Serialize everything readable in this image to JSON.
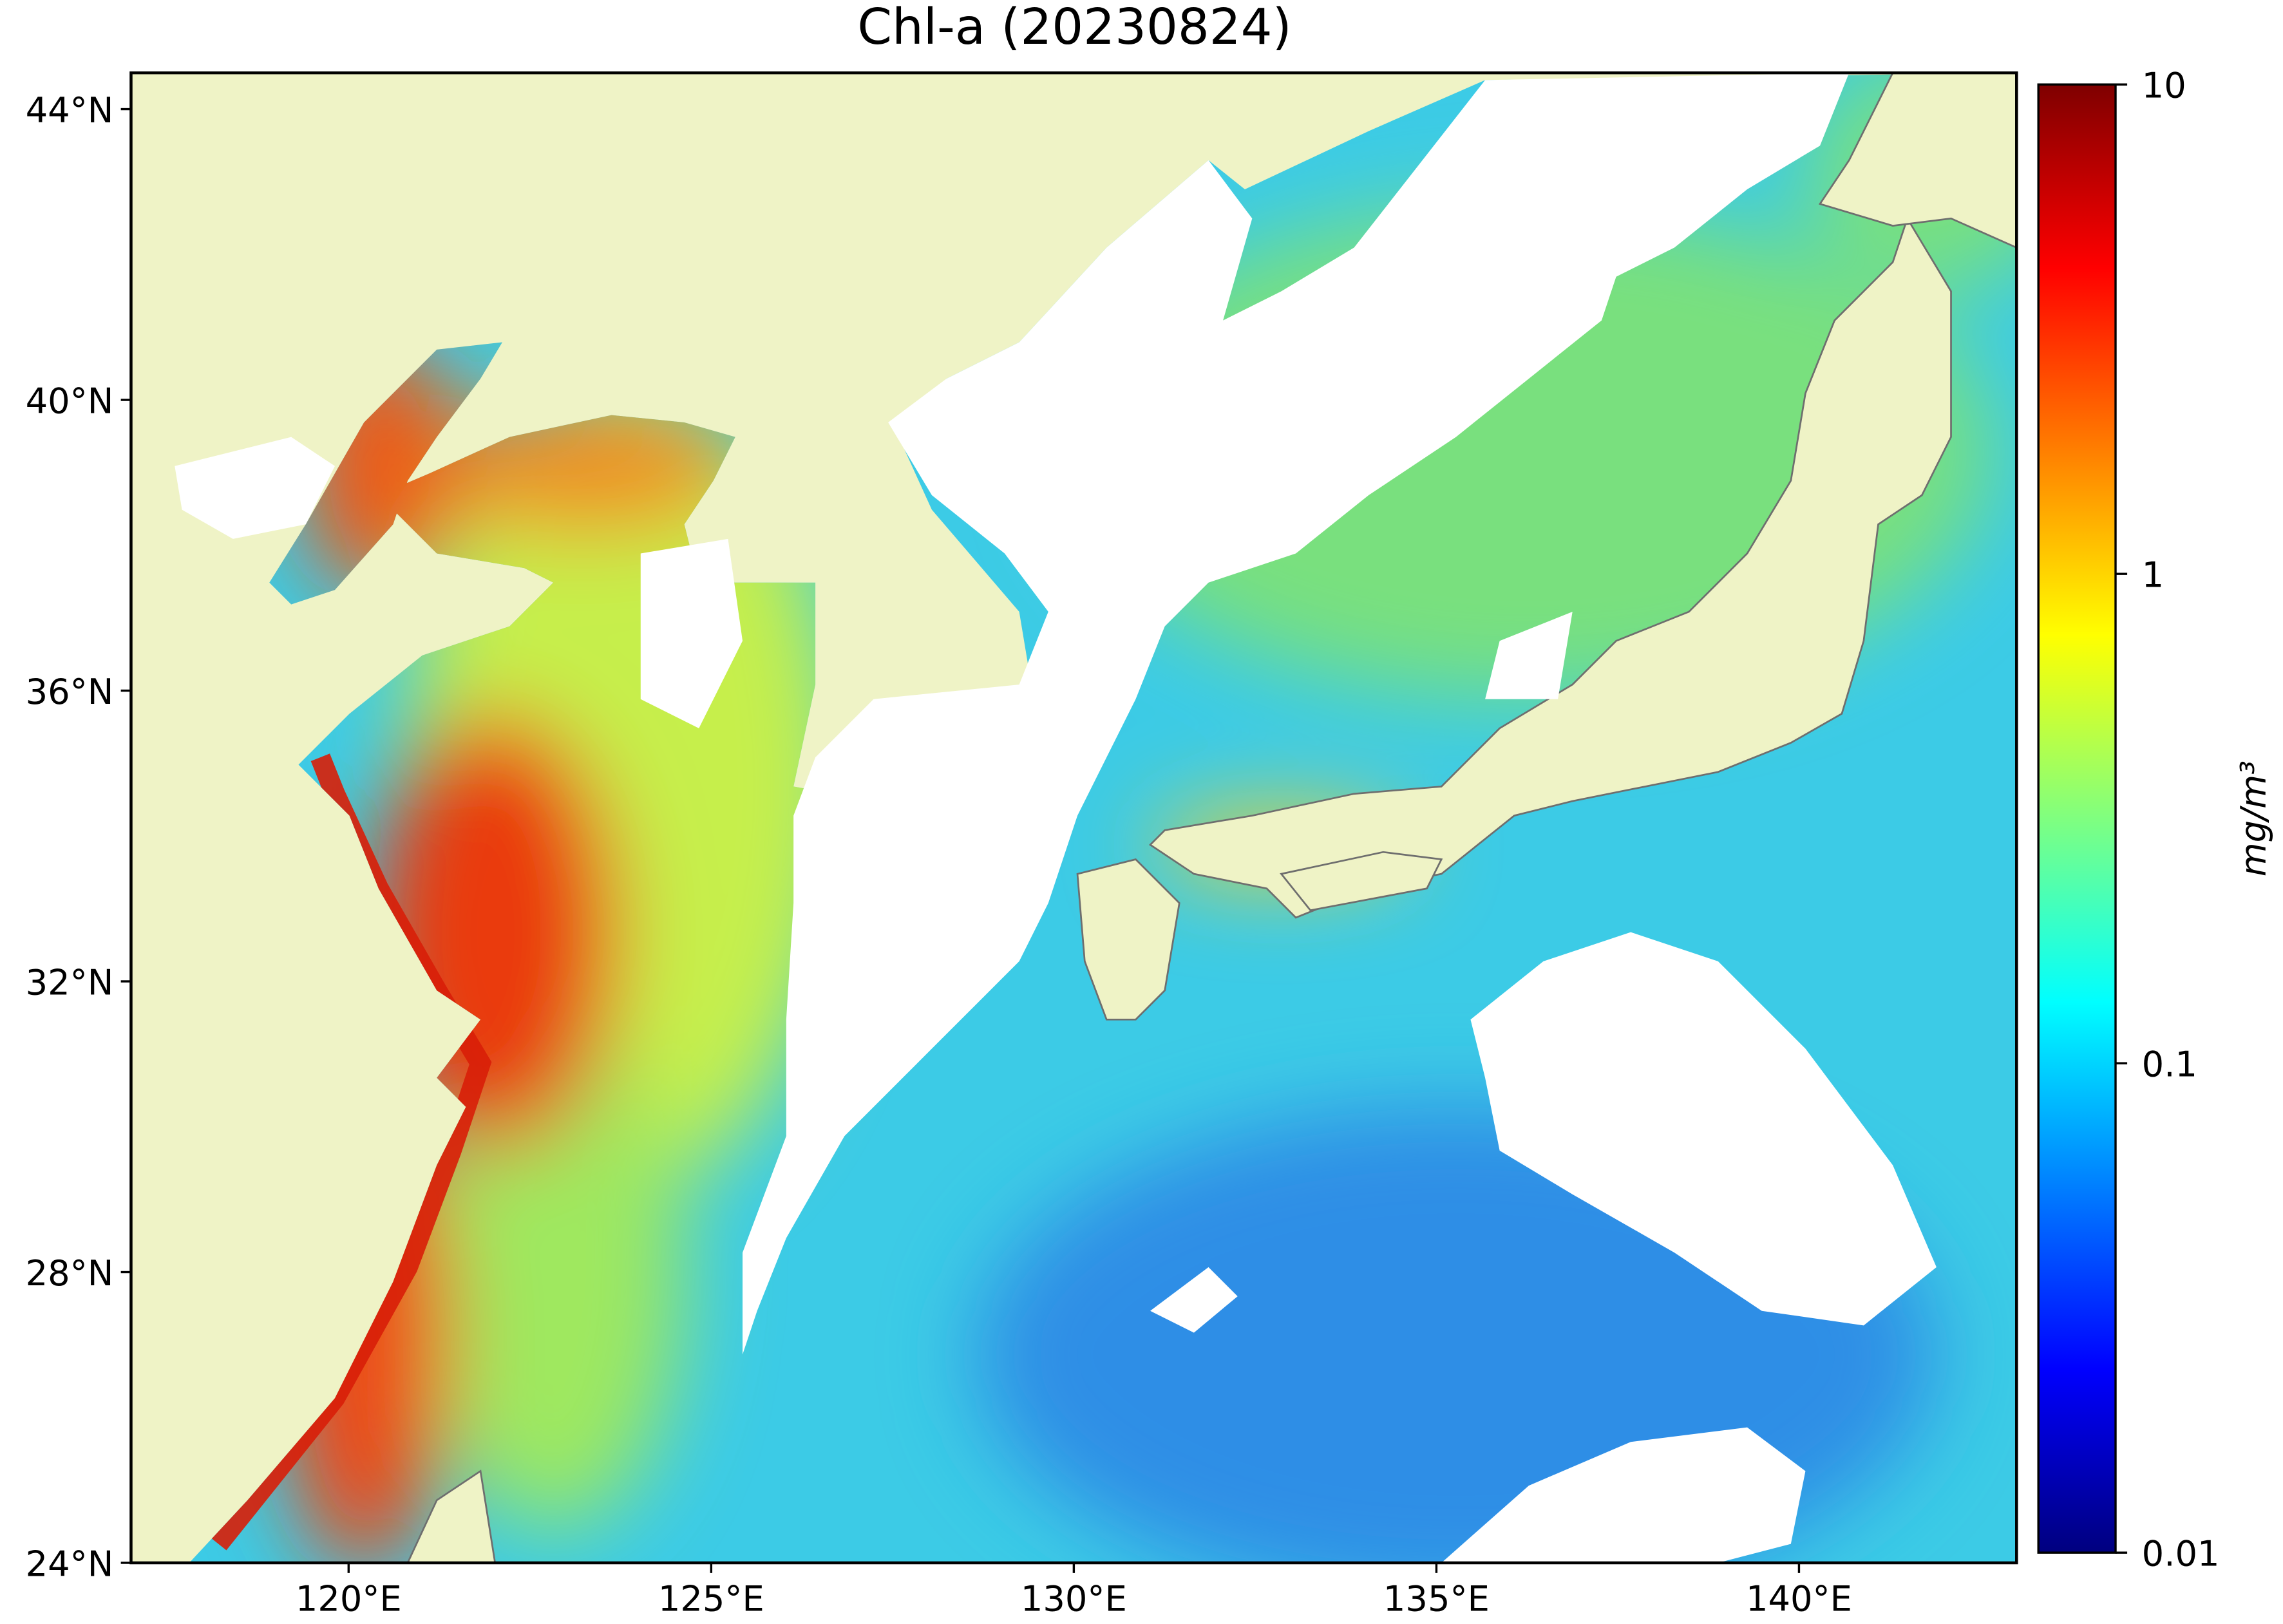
{
  "chart_data": {
    "type": "map",
    "title": "Chl-a (20230824)",
    "xlim": [
      117,
      143
    ],
    "ylim": [
      24,
      44.5
    ],
    "xticks": [
      {
        "value": 120,
        "label": "120°E"
      },
      {
        "value": 125,
        "label": "125°E"
      },
      {
        "value": 130,
        "label": "130°E"
      },
      {
        "value": 135,
        "label": "135°E"
      },
      {
        "value": 140,
        "label": "140°E"
      }
    ],
    "yticks": [
      {
        "value": 24,
        "label": "24°N"
      },
      {
        "value": 28,
        "label": "28°N"
      },
      {
        "value": 32,
        "label": "32°N"
      },
      {
        "value": 36,
        "label": "36°N"
      },
      {
        "value": 40,
        "label": "40°N"
      },
      {
        "value": 44,
        "label": "44°N"
      }
    ],
    "colorbar_label": "mg/m³",
    "colorbar_lim": [
      0.01,
      10
    ],
    "colorbar_scale": "log",
    "colorbar_ticks": [
      0.01,
      0.1,
      1,
      10
    ]
  }
}
